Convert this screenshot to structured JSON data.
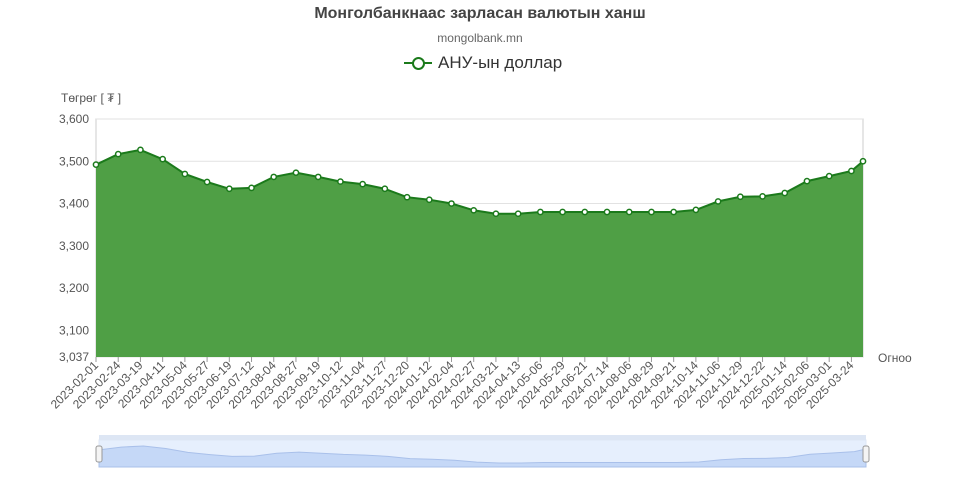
{
  "title": "Монголбанкнаас зарласан валютын ханш",
  "subtitle": "mongolbank.mn",
  "legend": {
    "label": "АНУ-ын доллар",
    "color": "#1b7a1b"
  },
  "chart_data": {
    "type": "area",
    "title": "Монголбанкнаас зарласан валютын ханш",
    "subtitle": "mongolbank.mn",
    "ylabel": "Төгрөг [ ₮ ]",
    "xlabel": "Огноо",
    "ylim": [
      3037,
      3600
    ],
    "yticks": [
      3037,
      3100,
      3200,
      3300,
      3400,
      3500,
      3600
    ],
    "ytick_labels": [
      "3,037",
      "3,100",
      "3,200",
      "3,300",
      "3,400",
      "3,500",
      "3,600"
    ],
    "grid": true,
    "legend_position": "top-center",
    "colors": {
      "line": "#1b7a1b",
      "fill": "#4f9f45",
      "navigator_fill": "#c5d8f7",
      "navigator_bg": "#e6effd"
    },
    "series": [
      {
        "name": "АНУ-ын доллар",
        "x": [
          "2023-02-01",
          "2023-02-24",
          "2023-03-19",
          "2023-04-11",
          "2023-05-04",
          "2023-05-27",
          "2023-06-19",
          "2023-07-12",
          "2023-08-04",
          "2023-08-27",
          "2023-09-19",
          "2023-10-12",
          "2023-11-04",
          "2023-11-27",
          "2023-12-20",
          "2024-01-12",
          "2024-02-04",
          "2024-02-27",
          "2024-03-21",
          "2024-04-13",
          "2024-05-06",
          "2024-05-29",
          "2024-06-21",
          "2024-07-14",
          "2024-08-06",
          "2024-08-29",
          "2024-09-21",
          "2024-10-14",
          "2024-11-06",
          "2024-11-29",
          "2024-12-22",
          "2025-01-14",
          "2025-02-06",
          "2025-03-01",
          "2025-03-24",
          "2025-04-05"
        ],
        "values": [
          3492,
          3517,
          3527,
          3505,
          3470,
          3451,
          3435,
          3437,
          3463,
          3473,
          3463,
          3452,
          3446,
          3435,
          3415,
          3409,
          3400,
          3384,
          3376,
          3376,
          3380,
          3380,
          3380,
          3380,
          3380,
          3380,
          3380,
          3385,
          3405,
          3416,
          3417,
          3425,
          3453,
          3465,
          3477,
          3500
        ]
      }
    ],
    "x_tick_labels": [
      "2023-02-01",
      "2023-02-24",
      "2023-03-19",
      "2023-04-11",
      "2023-05-04",
      "2023-05-27",
      "2023-06-19",
      "2023-07-12",
      "2023-08-04",
      "2023-08-27",
      "2023-09-19",
      "2023-10-12",
      "2023-11-04",
      "2023-11-27",
      "2023-12-20",
      "2024-01-12",
      "2024-02-04",
      "2024-02-27",
      "2024-03-21",
      "2024-04-13",
      "2024-05-06",
      "2024-05-29",
      "2024-06-21",
      "2024-07-14",
      "2024-08-06",
      "2024-08-29",
      "2024-09-21",
      "2024-10-14",
      "2024-11-06",
      "2024-11-29",
      "2024-12-22",
      "2025-01-14",
      "2025-02-06",
      "2025-03-01",
      "2025-03-24"
    ]
  }
}
